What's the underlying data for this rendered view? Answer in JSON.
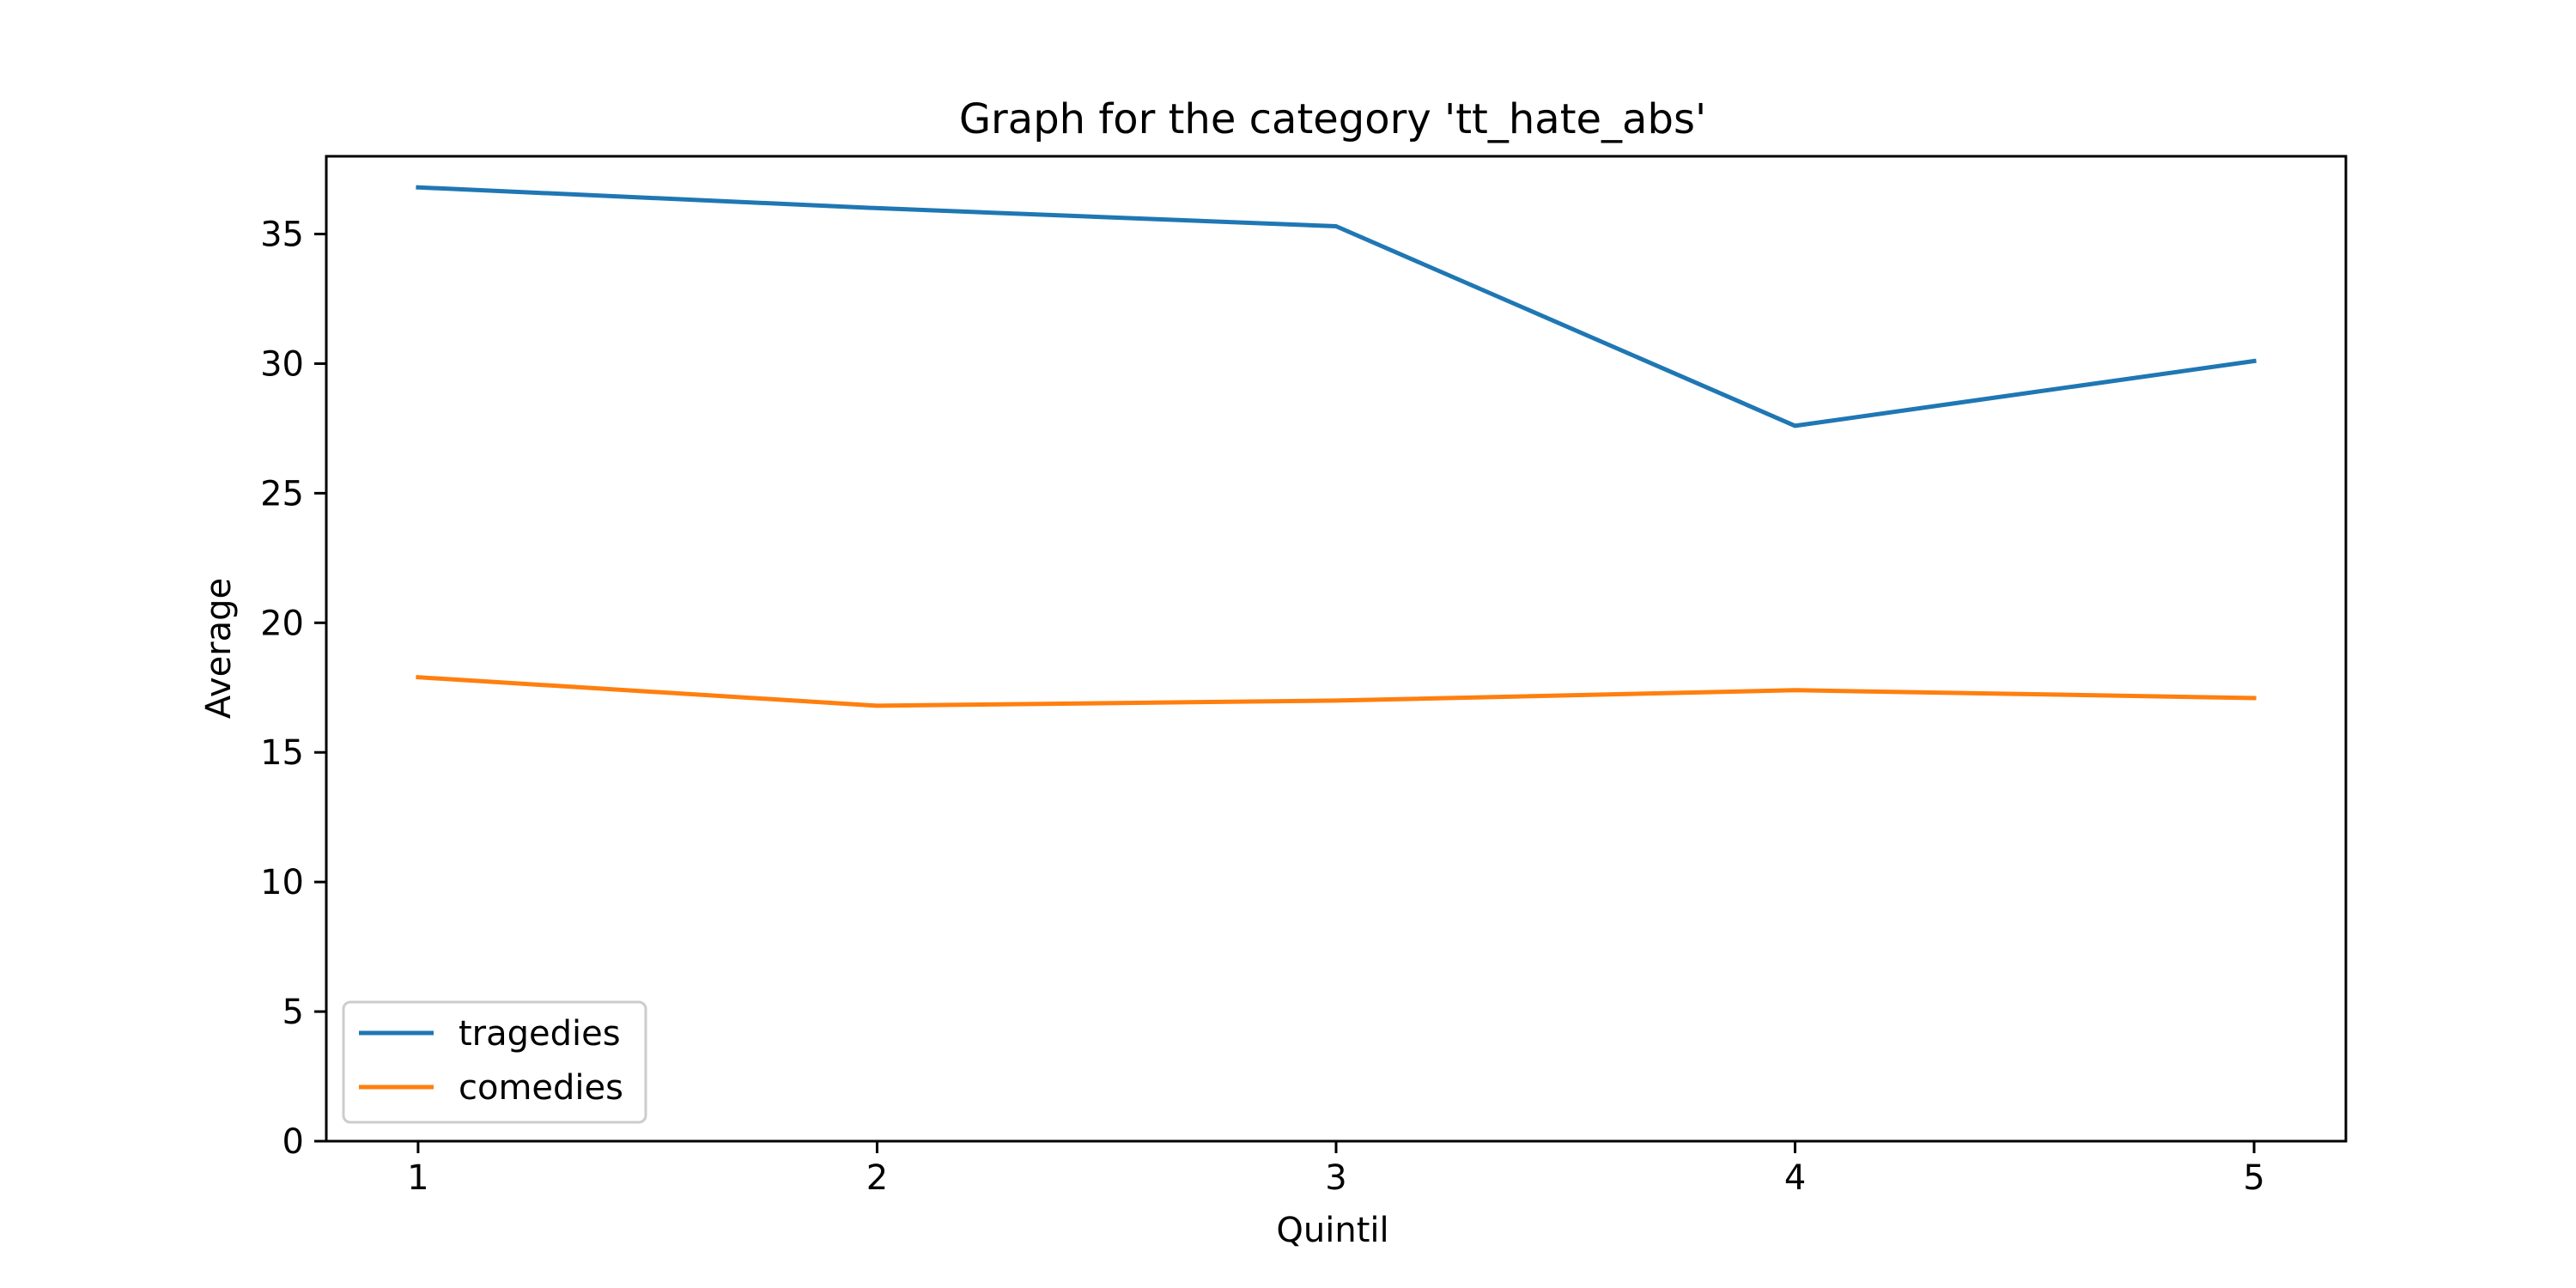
{
  "chart_data": {
    "type": "line",
    "title": "Graph for the category  'tt_hate_abs'",
    "xlabel": "Quintil",
    "ylabel": "Average",
    "x": [
      1,
      2,
      3,
      4,
      5
    ],
    "xticks": [
      "1",
      "2",
      "3",
      "4",
      "5"
    ],
    "xlim": [
      0.8,
      5.2
    ],
    "ylim": [
      0,
      38
    ],
    "yticks": [
      "0",
      "5",
      "10",
      "15",
      "20",
      "25",
      "30",
      "35"
    ],
    "yticks_values": [
      0,
      5,
      10,
      15,
      20,
      25,
      30,
      35
    ],
    "grid": false,
    "legend_position": "lower-left",
    "series": [
      {
        "name": "tragedies",
        "color": "#1f77b4",
        "values": [
          36.8,
          36.0,
          35.3,
          27.6,
          30.1
        ]
      },
      {
        "name": "comedies",
        "color": "#ff7f0e",
        "values": [
          17.9,
          16.8,
          17.0,
          17.4,
          17.1
        ]
      }
    ]
  }
}
